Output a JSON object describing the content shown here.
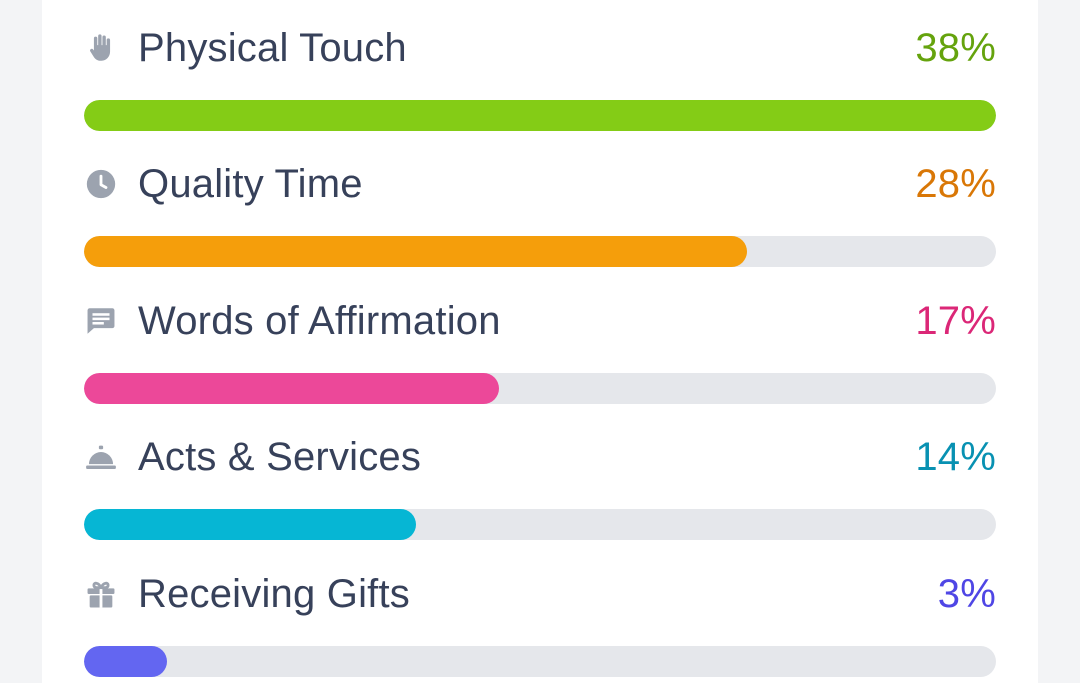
{
  "languages": [
    {
      "id": "physical-touch",
      "label": "Physical Touch",
      "percent_text": "38%",
      "bar_fraction": 1.0,
      "color": "#84cc16",
      "text_color": "#65a30d",
      "icon": "hand-icon"
    },
    {
      "id": "quality-time",
      "label": "Quality Time",
      "percent_text": "28%",
      "bar_fraction": 0.727,
      "color": "#f59e0b",
      "text_color": "#d97706",
      "icon": "clock-icon"
    },
    {
      "id": "words-of-affirmation",
      "label": "Words of Affirmation",
      "percent_text": "17%",
      "bar_fraction": 0.455,
      "color": "#ec4899",
      "text_color": "#db2777",
      "icon": "chat-icon"
    },
    {
      "id": "acts-services",
      "label": "Acts & Services",
      "percent_text": "14%",
      "bar_fraction": 0.364,
      "color": "#06b6d4",
      "text_color": "#0891b2",
      "icon": "bell-icon"
    },
    {
      "id": "receiving-gifts",
      "label": "Receiving Gifts",
      "percent_text": "3%",
      "bar_fraction": 0.091,
      "color": "#6366f1",
      "text_color": "#4f46e5",
      "icon": "gift-icon"
    }
  ],
  "icon_color": "#9ca3af"
}
